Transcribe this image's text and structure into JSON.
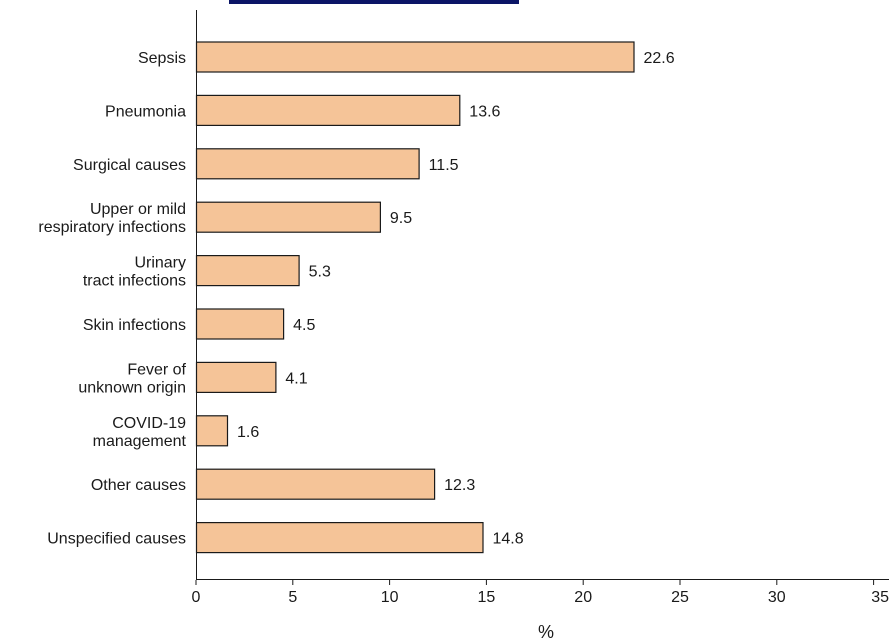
{
  "chart_data": {
    "type": "bar",
    "orientation": "horizontal",
    "categories": [
      [
        "Sepsis"
      ],
      [
        "Pneumonia"
      ],
      [
        "Surgical causes"
      ],
      [
        "Upper or mild",
        "respiratory infections"
      ],
      [
        "Urinary",
        "tract infections"
      ],
      [
        "Skin infections"
      ],
      [
        "Fever of",
        "unknown origin"
      ],
      [
        "COVID-19",
        "management"
      ],
      [
        "Other causes"
      ],
      [
        "Unspecified causes"
      ]
    ],
    "values": [
      22.6,
      13.6,
      11.5,
      9.5,
      5.3,
      4.5,
      4.1,
      1.6,
      12.3,
      14.8
    ],
    "value_labels": [
      "22.6",
      "13.6",
      "11.5",
      "9.5",
      "5.3",
      "4.5",
      "4.1",
      "1.6",
      "12.3",
      "14.8"
    ],
    "xlabel": "%",
    "xlim": [
      0,
      35
    ],
    "xticks": [
      "0",
      "5",
      "10",
      "15",
      "20",
      "25",
      "30",
      "35"
    ],
    "grid": false,
    "colors": {
      "bar_fill": "#f5c498",
      "bar_stroke": "#1a1a1a",
      "banner": "#0b1566"
    }
  }
}
